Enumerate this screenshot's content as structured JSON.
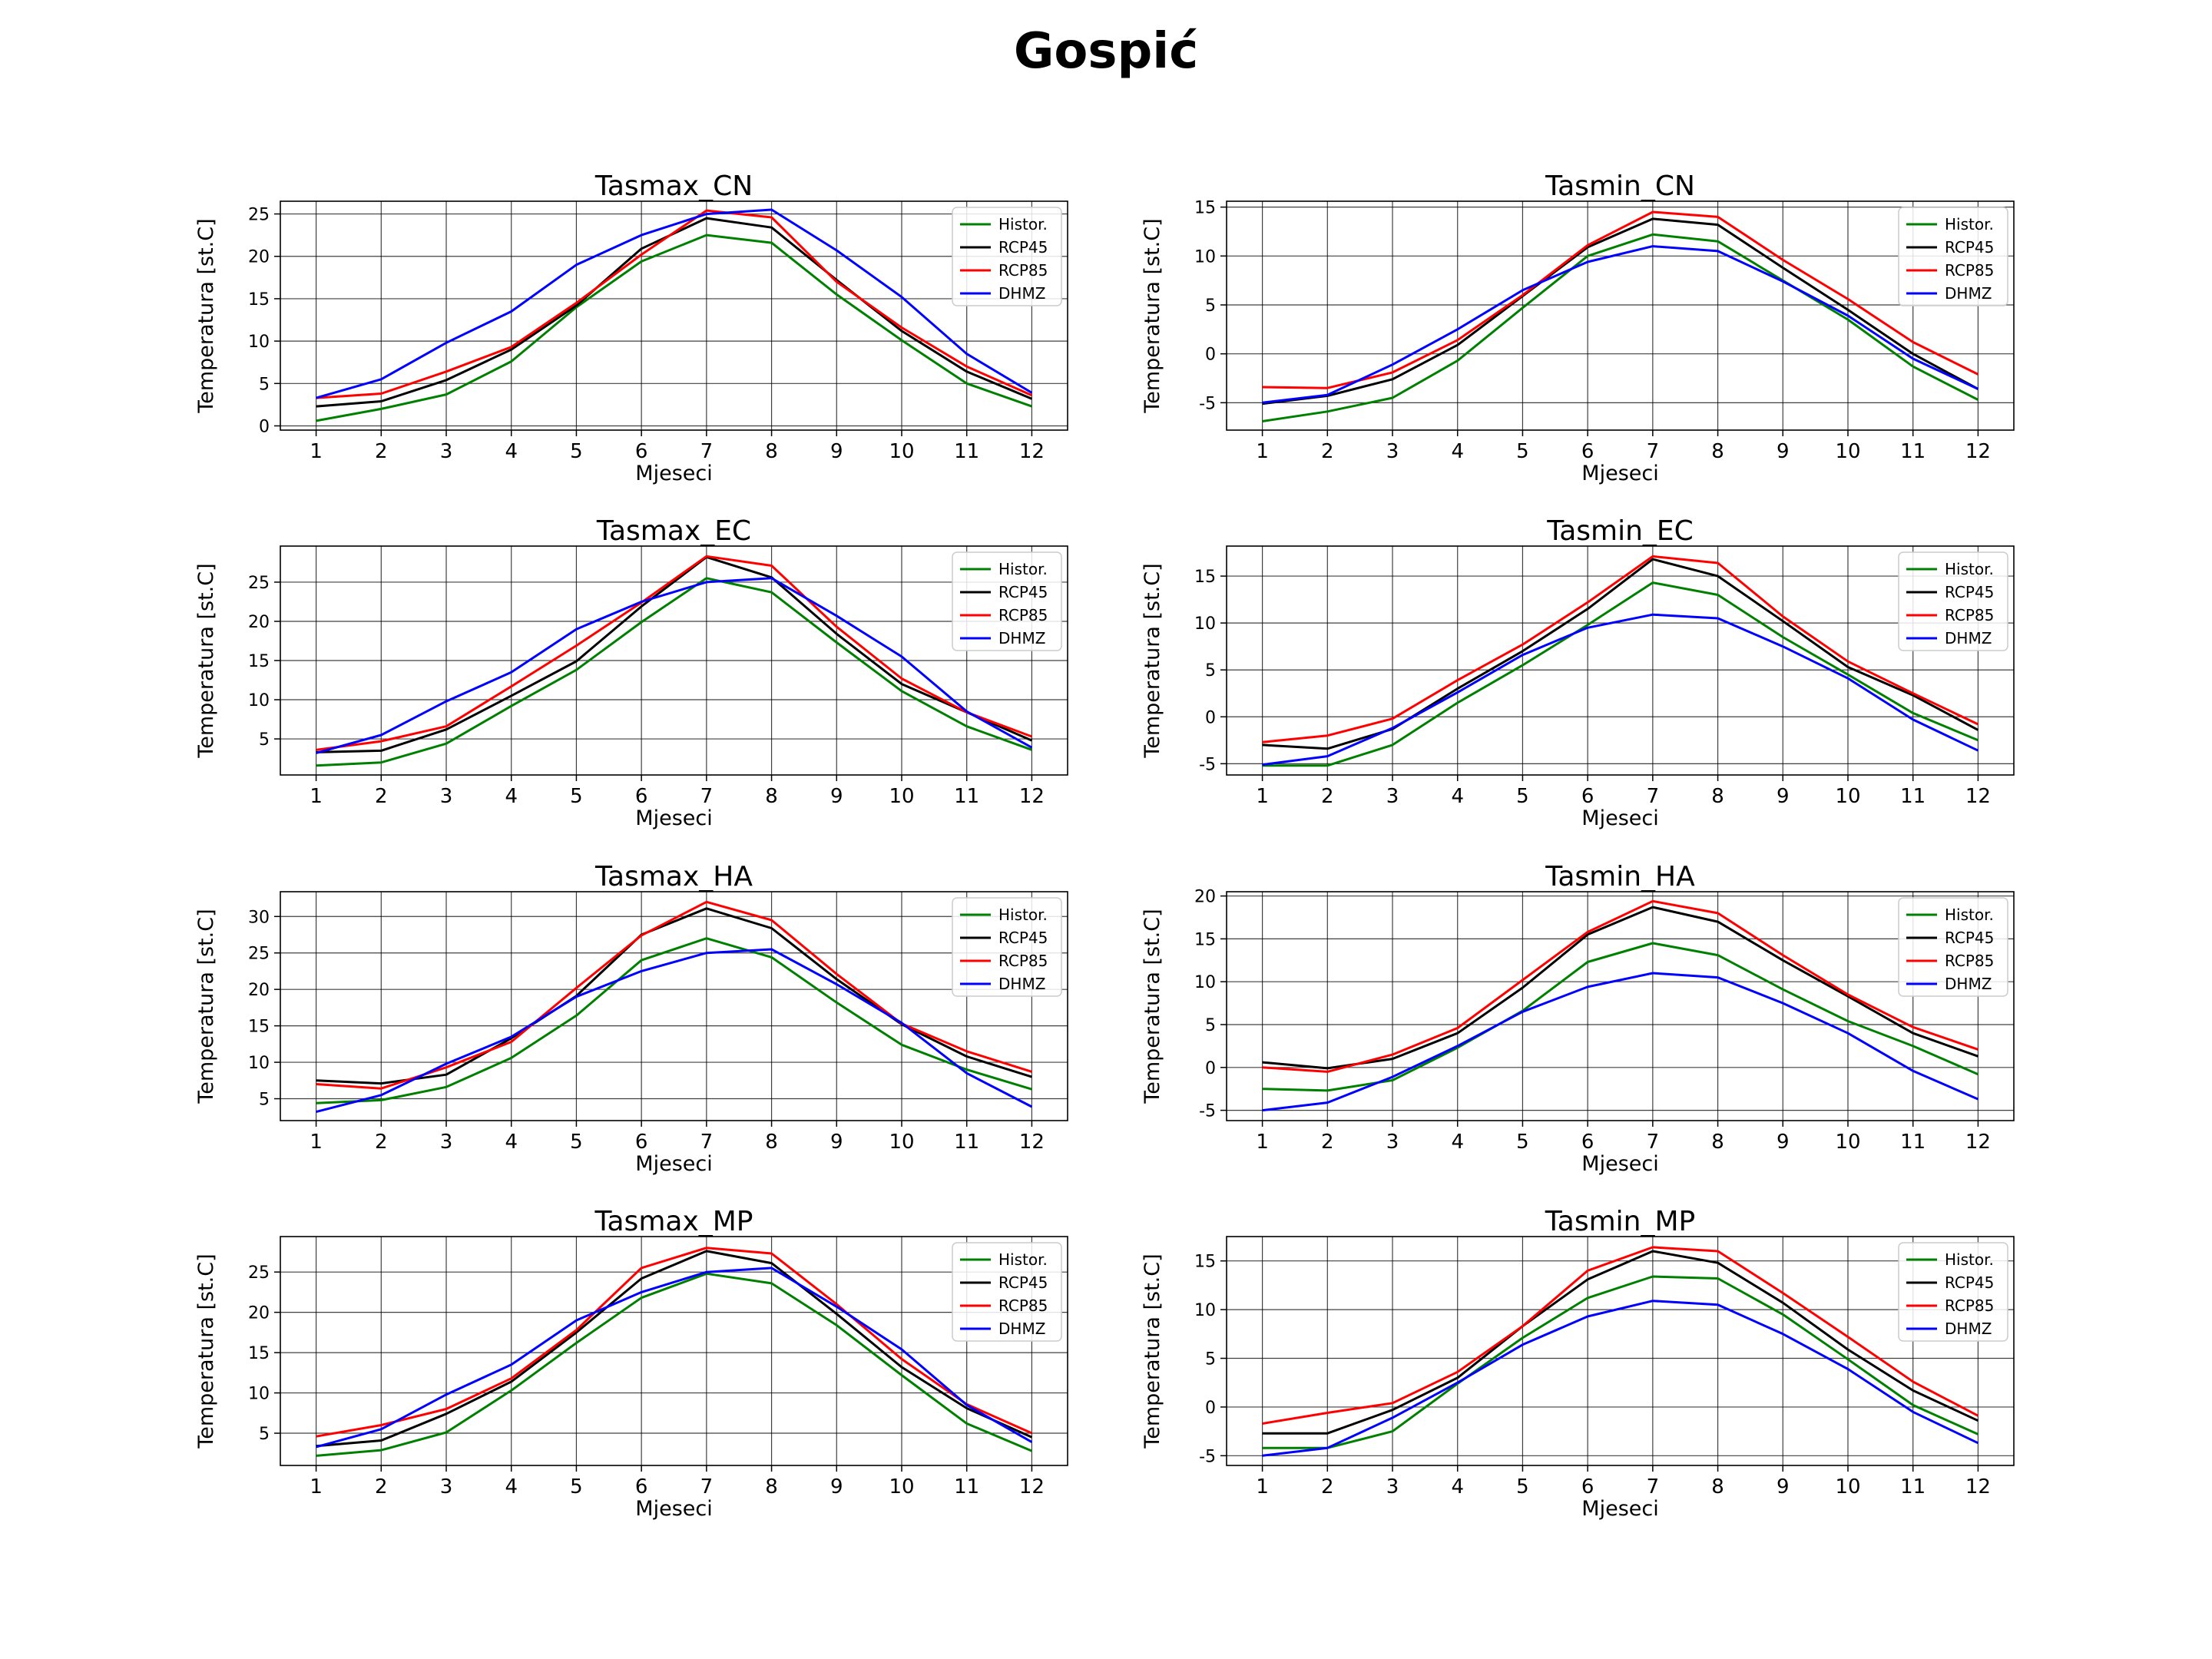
{
  "figure": {
    "title": "Gospić"
  },
  "series_style": [
    {
      "name": "Histor.",
      "color": "#008000"
    },
    {
      "name": "RCP45",
      "color": "#000000"
    },
    {
      "name": "RCP85",
      "color": "#ff0000"
    },
    {
      "name": "DHMZ",
      "color": "#0000ff"
    }
  ],
  "chart_data": [
    {
      "type": "line",
      "title": "Tasmax_CN",
      "xlabel": "Mjeseci",
      "ylabel": "Temperatura [st.C]",
      "x": [
        1,
        2,
        3,
        4,
        5,
        6,
        7,
        8,
        9,
        10,
        11,
        12
      ],
      "ylim": [
        -0.5,
        26.5
      ],
      "yticks": [
        0,
        5,
        10,
        15,
        20,
        25
      ],
      "grid": true,
      "legend_position": "upper right",
      "series": [
        {
          "name": "Histor.",
          "values": [
            0.6,
            2.0,
            3.7,
            7.6,
            14.0,
            19.4,
            22.5,
            21.6,
            15.5,
            10.1,
            5.0,
            2.3
          ]
        },
        {
          "name": "RCP45",
          "values": [
            2.3,
            2.9,
            5.4,
            9.0,
            14.2,
            20.9,
            24.5,
            23.4,
            17.2,
            11.2,
            6.4,
            3.2
          ]
        },
        {
          "name": "RCP85",
          "values": [
            3.3,
            3.8,
            6.4,
            9.3,
            14.5,
            20.2,
            25.4,
            24.6,
            17.0,
            11.6,
            7.0,
            3.6
          ]
        },
        {
          "name": "DHMZ",
          "values": [
            3.3,
            5.5,
            9.8,
            13.5,
            19.0,
            22.5,
            25.0,
            25.5,
            20.7,
            15.2,
            8.5,
            3.9
          ]
        }
      ]
    },
    {
      "type": "line",
      "title": "Tasmin_CN",
      "xlabel": "Mjeseci",
      "ylabel": "Temperatura [st.C]",
      "x": [
        1,
        2,
        3,
        4,
        5,
        6,
        7,
        8,
        9,
        10,
        11,
        12
      ],
      "ylim": [
        -7.8,
        15.6
      ],
      "yticks": [
        -5,
        0,
        5,
        10,
        15
      ],
      "grid": true,
      "legend_position": "upper right",
      "series": [
        {
          "name": "Histor.",
          "values": [
            -6.9,
            -5.9,
            -4.5,
            -0.7,
            4.7,
            10.0,
            12.2,
            11.5,
            7.5,
            3.5,
            -1.3,
            -4.7
          ]
        },
        {
          "name": "RCP45",
          "values": [
            -5.1,
            -4.3,
            -2.6,
            0.9,
            5.9,
            10.9,
            13.8,
            13.2,
            8.8,
            4.5,
            0.0,
            -3.6
          ]
        },
        {
          "name": "RCP85",
          "values": [
            -3.4,
            -3.5,
            -1.9,
            1.4,
            6.0,
            11.1,
            14.5,
            14.0,
            9.6,
            5.6,
            1.2,
            -2.1
          ]
        },
        {
          "name": "DHMZ",
          "values": [
            -5.0,
            -4.2,
            -1.1,
            2.5,
            6.5,
            9.4,
            11.0,
            10.5,
            7.4,
            3.9,
            -0.5,
            -3.6
          ]
        }
      ]
    },
    {
      "type": "line",
      "title": "Tasmax_EC",
      "xlabel": "Mjeseci",
      "ylabel": "Temperatura [st.C]",
      "x": [
        1,
        2,
        3,
        4,
        5,
        6,
        7,
        8,
        9,
        10,
        11,
        12
      ],
      "ylim": [
        0.4,
        29.6
      ],
      "yticks": [
        5,
        10,
        15,
        20,
        25
      ],
      "grid": true,
      "legend_position": "upper right",
      "series": [
        {
          "name": "Histor.",
          "values": [
            1.6,
            2.0,
            4.4,
            9.2,
            13.8,
            19.9,
            25.5,
            23.7,
            17.3,
            11.1,
            6.6,
            3.6
          ]
        },
        {
          "name": "RCP45",
          "values": [
            3.3,
            3.5,
            6.2,
            10.5,
            14.9,
            21.9,
            28.2,
            25.6,
            18.4,
            12.0,
            8.4,
            4.8
          ]
        },
        {
          "name": "RCP85",
          "values": [
            3.6,
            4.7,
            6.6,
            11.7,
            16.9,
            22.4,
            28.3,
            27.1,
            19.3,
            12.7,
            8.4,
            5.3
          ]
        },
        {
          "name": "DHMZ",
          "values": [
            3.2,
            5.5,
            9.8,
            13.5,
            19.0,
            22.5,
            25.0,
            25.5,
            20.7,
            15.5,
            8.5,
            3.9
          ]
        }
      ]
    },
    {
      "type": "line",
      "title": "Tasmin_EC",
      "xlabel": "Mjeseci",
      "ylabel": "Temperatura [st.C]",
      "x": [
        1,
        2,
        3,
        4,
        5,
        6,
        7,
        8,
        9,
        10,
        11,
        12
      ],
      "ylim": [
        -6.2,
        18.2
      ],
      "yticks": [
        -5,
        0,
        5,
        10,
        15
      ],
      "grid": true,
      "legend_position": "upper right",
      "series": [
        {
          "name": "Histor.",
          "values": [
            -5.2,
            -5.2,
            -3.0,
            1.5,
            5.5,
            9.8,
            14.3,
            13.0,
            8.5,
            4.5,
            0.4,
            -2.5
          ]
        },
        {
          "name": "RCP45",
          "values": [
            -3.0,
            -3.4,
            -1.3,
            3.0,
            7.0,
            11.5,
            16.8,
            15.0,
            10.2,
            5.3,
            2.3,
            -1.4
          ]
        },
        {
          "name": "RCP85",
          "values": [
            -2.7,
            -2.0,
            -0.2,
            3.9,
            7.7,
            12.2,
            17.1,
            16.4,
            10.7,
            5.9,
            2.5,
            -0.8
          ]
        },
        {
          "name": "DHMZ",
          "values": [
            -5.1,
            -4.2,
            -1.2,
            2.6,
            6.6,
            9.5,
            10.9,
            10.5,
            7.5,
            4.1,
            -0.3,
            -3.6
          ]
        }
      ]
    },
    {
      "type": "line",
      "title": "Tasmax_HA",
      "xlabel": "Mjeseci",
      "ylabel": "Temperatura [st.C]",
      "x": [
        1,
        2,
        3,
        4,
        5,
        6,
        7,
        8,
        9,
        10,
        11,
        12
      ],
      "ylim": [
        2.0,
        33.4
      ],
      "yticks": [
        5,
        10,
        15,
        20,
        25,
        30
      ],
      "grid": true,
      "legend_position": "upper right",
      "series": [
        {
          "name": "Histor.",
          "values": [
            4.4,
            4.8,
            6.6,
            10.6,
            16.4,
            24.0,
            27.0,
            24.4,
            18.2,
            12.4,
            9.0,
            6.3
          ]
        },
        {
          "name": "RCP45",
          "values": [
            7.5,
            7.1,
            8.3,
            13.3,
            19.1,
            27.5,
            31.1,
            28.4,
            21.4,
            15.2,
            10.8,
            8.0
          ]
        },
        {
          "name": "RCP85",
          "values": [
            7.0,
            6.4,
            9.3,
            12.8,
            20.2,
            27.4,
            32.0,
            29.5,
            22.1,
            15.3,
            11.5,
            8.7
          ]
        },
        {
          "name": "DHMZ",
          "values": [
            3.2,
            5.5,
            9.8,
            13.5,
            19.0,
            22.5,
            25.0,
            25.5,
            20.7,
            15.4,
            8.5,
            3.9
          ]
        }
      ]
    },
    {
      "type": "line",
      "title": "Tasmin_HA",
      "xlabel": "Mjeseci",
      "ylabel": "Temperatura [st.C]",
      "x": [
        1,
        2,
        3,
        4,
        5,
        6,
        7,
        8,
        9,
        10,
        11,
        12
      ],
      "ylim": [
        -6.2,
        20.5
      ],
      "yticks": [
        -5,
        0,
        5,
        10,
        15,
        20
      ],
      "grid": true,
      "legend_position": "upper right",
      "series": [
        {
          "name": "Histor.",
          "values": [
            -2.5,
            -2.7,
            -1.5,
            2.3,
            6.6,
            12.3,
            14.5,
            13.1,
            9.1,
            5.4,
            2.5,
            -0.8
          ]
        },
        {
          "name": "RCP45",
          "values": [
            0.6,
            -0.1,
            1.0,
            4.0,
            9.3,
            15.5,
            18.7,
            17.0,
            12.5,
            8.3,
            4.0,
            1.3
          ]
        },
        {
          "name": "RCP85",
          "values": [
            0.0,
            -0.5,
            1.5,
            4.6,
            10.2,
            15.8,
            19.4,
            18.0,
            13.1,
            8.5,
            4.7,
            2.1
          ]
        },
        {
          "name": "DHMZ",
          "values": [
            -5.0,
            -4.1,
            -1.1,
            2.5,
            6.5,
            9.4,
            11.0,
            10.5,
            7.5,
            4.0,
            -0.4,
            -3.7
          ]
        }
      ]
    },
    {
      "type": "line",
      "title": "Tasmax_MP",
      "xlabel": "Mjeseci",
      "ylabel": "Temperatura [st.C]",
      "x": [
        1,
        2,
        3,
        4,
        5,
        6,
        7,
        8,
        9,
        10,
        11,
        12
      ],
      "ylim": [
        1.0,
        29.4
      ],
      "yticks": [
        5,
        10,
        15,
        20,
        25
      ],
      "grid": true,
      "legend_position": "upper right",
      "series": [
        {
          "name": "Histor.",
          "values": [
            2.2,
            2.9,
            5.1,
            10.3,
            16.2,
            21.8,
            24.8,
            23.6,
            18.4,
            12.2,
            6.2,
            2.8
          ]
        },
        {
          "name": "RCP45",
          "values": [
            3.4,
            4.1,
            7.4,
            11.4,
            17.5,
            24.2,
            27.6,
            26.1,
            19.8,
            13.2,
            8.1,
            4.5
          ]
        },
        {
          "name": "RCP85",
          "values": [
            4.6,
            6.0,
            8.0,
            11.8,
            17.8,
            25.5,
            28.0,
            27.3,
            21.0,
            14.2,
            8.6,
            5.0
          ]
        },
        {
          "name": "DHMZ",
          "values": [
            3.3,
            5.5,
            9.8,
            13.5,
            19.0,
            22.5,
            25.0,
            25.5,
            20.7,
            15.4,
            8.5,
            3.9
          ]
        }
      ]
    },
    {
      "type": "line",
      "title": "Tasmin_MP",
      "xlabel": "Mjeseci",
      "ylabel": "Temperatura [st.C]",
      "x": [
        1,
        2,
        3,
        4,
        5,
        6,
        7,
        8,
        9,
        10,
        11,
        12
      ],
      "ylim": [
        -6.0,
        17.5
      ],
      "yticks": [
        -5,
        0,
        5,
        10,
        15
      ],
      "grid": true,
      "legend_position": "upper right",
      "series": [
        {
          "name": "Histor.",
          "values": [
            -4.2,
            -4.2,
            -2.5,
            2.4,
            7.1,
            11.2,
            13.4,
            13.2,
            9.5,
            4.9,
            0.2,
            -2.8
          ]
        },
        {
          "name": "RCP45",
          "values": [
            -2.7,
            -2.7,
            -0.3,
            3.0,
            8.3,
            13.1,
            16.0,
            14.8,
            10.7,
            5.9,
            1.7,
            -1.4
          ]
        },
        {
          "name": "RCP85",
          "values": [
            -1.7,
            -0.6,
            0.4,
            3.6,
            8.3,
            14.0,
            16.4,
            16.0,
            11.7,
            7.2,
            2.6,
            -0.9
          ]
        },
        {
          "name": "DHMZ",
          "values": [
            -5.0,
            -4.2,
            -1.1,
            2.5,
            6.4,
            9.3,
            10.9,
            10.5,
            7.5,
            3.9,
            -0.5,
            -3.7
          ]
        }
      ]
    }
  ]
}
